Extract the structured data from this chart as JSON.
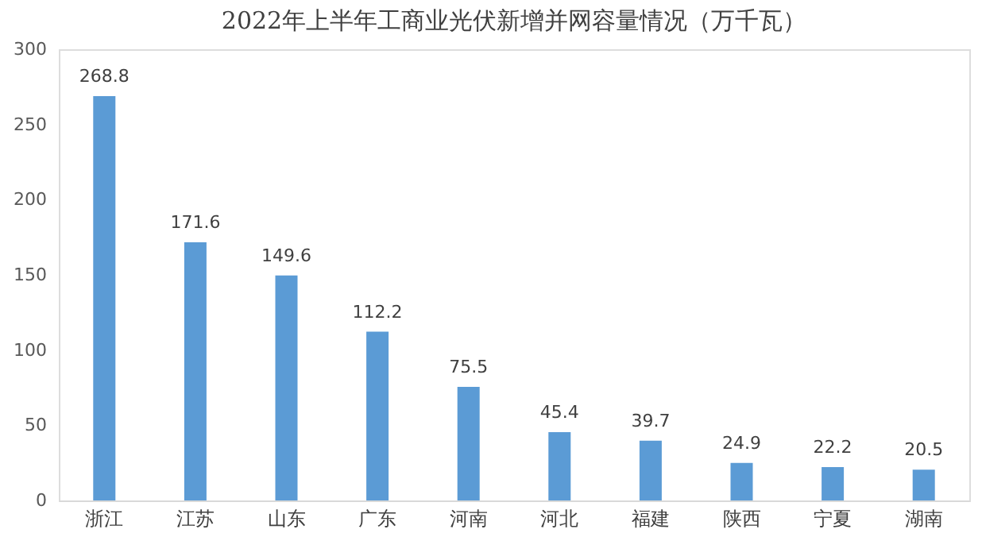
{
  "chart_data": {
    "type": "bar",
    "title": "2022年上半年工商业光伏新增并网容量情况（万千瓦）",
    "categories": [
      "浙江",
      "江苏",
      "山东",
      "广东",
      "河南",
      "河北",
      "福建",
      "陕西",
      "宁夏",
      "湖南"
    ],
    "values": [
      268.8,
      171.6,
      149.6,
      112.2,
      75.5,
      45.4,
      39.7,
      24.9,
      22.2,
      20.5
    ],
    "color": "#5b9bd5",
    "ylim": [
      0,
      300
    ],
    "yticks": [
      0,
      50,
      100,
      150,
      200,
      250,
      300
    ],
    "grid": false,
    "data_labels": true
  }
}
